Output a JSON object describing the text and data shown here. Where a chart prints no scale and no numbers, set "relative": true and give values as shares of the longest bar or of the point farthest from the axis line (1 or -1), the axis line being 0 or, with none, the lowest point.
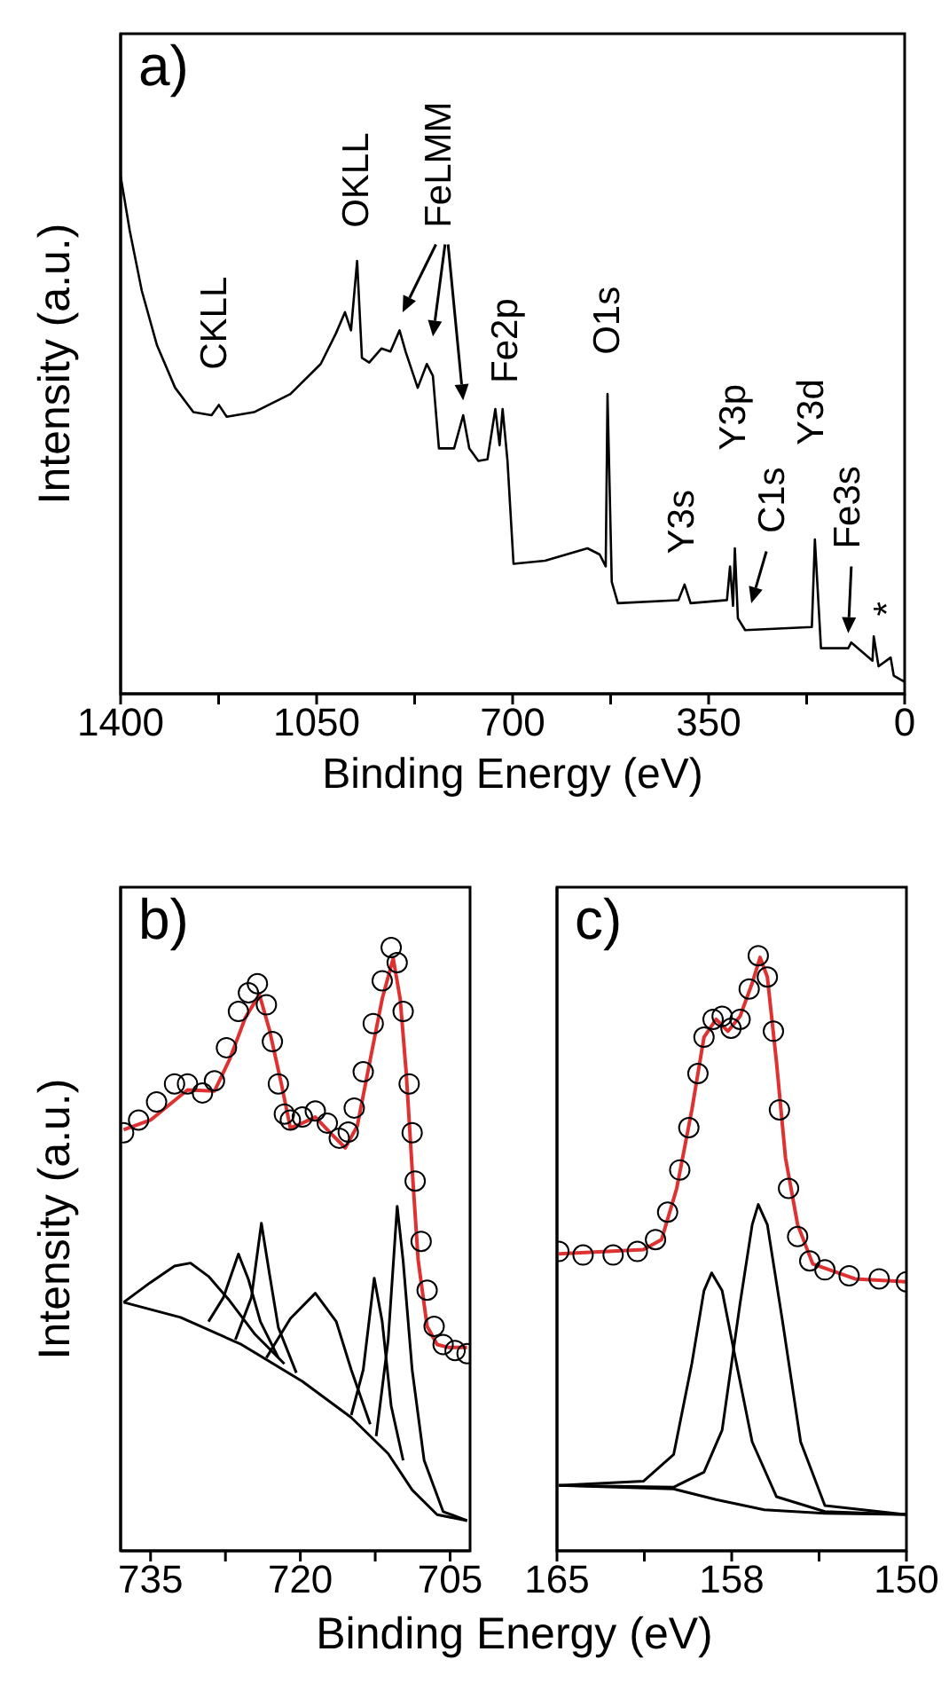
{
  "chart_data": [
    {
      "type": "line",
      "title": "a)",
      "xlabel": "Binding Energy (eV)",
      "ylabel": "Intensity (a.u.)",
      "relative": true,
      "tick_labels": "x",
      "xlim": [
        1400,
        0
      ],
      "xticks": [
        1400,
        {
          "value": 1225,
          "label": null
        },
        1050,
        {
          "value": 875,
          "label": null
        },
        700,
        {
          "value": 525,
          "label": null
        },
        350,
        {
          "value": 175,
          "label": null
        },
        0
      ],
      "series": [
        {
          "type": "line",
          "color": "#000000",
          "x": [
            1400,
            1383.8,
            1362.1,
            1335.0,
            1302.6,
            1270.1,
            1237.6,
            1224.6,
            1210.5,
            1161.8,
            1096.8,
            1042.7,
            1015.6,
            999.4,
            988.6,
            977.7,
            969.1,
            956.1,
            934.4,
            918.2,
            901.9,
            891.1,
            869.5,
            853.2,
            842.4,
            831.6,
            804.5,
            788.3,
            777.4,
            761.2,
            744.9,
            730.9,
            723.3,
            717.9,
            709.2,
            698.4,
            642.1,
            566.3,
            544.6,
            533.8,
            530.6,
            523.0,
            512.1,
            403.9,
            393.0,
            382.2,
            317.3,
            311.8,
            306.4,
            303.2,
            297.8,
            284.8,
            165.7,
            160.3,
            149.4,
            100.7,
            95.3,
            57.4,
            55.2,
            46.6,
            25.0,
            19.5,
            0
          ],
          "values": [
            1.0,
            0.895,
            0.778,
            0.673,
            0.591,
            0.544,
            0.538,
            0.558,
            0.535,
            0.544,
            0.579,
            0.637,
            0.696,
            0.737,
            0.702,
            0.836,
            0.649,
            0.64,
            0.667,
            0.661,
            0.702,
            0.661,
            0.591,
            0.637,
            0.614,
            0.474,
            0.474,
            0.538,
            0.474,
            0.45,
            0.453,
            0.55,
            0.48,
            0.55,
            0.45,
            0.251,
            0.257,
            0.281,
            0.269,
            0.246,
            0.579,
            0.216,
            0.175,
            0.181,
            0.211,
            0.175,
            0.181,
            0.246,
            0.17,
            0.281,
            0.146,
            0.123,
            0.129,
            0.298,
            0.088,
            0.088,
            0.099,
            0.064,
            0.111,
            0.053,
            0.07,
            0.035,
            0.023
          ]
        }
      ],
      "annotations": [
        "CKLL",
        "OKLL",
        "FeLMM",
        "Fe2p",
        "O1s",
        "Y3s",
        "Y3p",
        "C1s",
        "Y3d",
        "Fe3s",
        "*"
      ]
    },
    {
      "type": "line",
      "title": "b)",
      "xlabel": "Binding Energy (eV)",
      "ylabel": "Intensity (a.u.)",
      "relative": true,
      "tick_labels": "x",
      "xlim": [
        738,
        703
      ],
      "xticks": [
        735,
        {
          "value": 727.5,
          "label": null
        },
        720,
        {
          "value": 712.5,
          "label": null
        },
        705
      ],
      "series": [
        {
          "type": "scatter",
          "marker": "circle",
          "color": "#000000",
          "x": [
            737.7,
            736.2,
            734.4,
            732.6,
            731.3,
            729.8,
            728.6,
            727.4,
            726.2,
            725.2,
            724.3,
            723.4,
            722.8,
            722.2,
            721.6,
            721.0,
            719.8,
            718.5,
            717.3,
            716.1,
            715.2,
            714.6,
            713.7,
            712.7,
            711.8,
            710.9,
            710.3,
            709.7,
            709.1,
            708.8,
            708.5,
            707.9,
            707.3,
            706.6,
            705.7,
            704.5,
            703.3
          ],
          "values": [
            0.693,
            0.714,
            0.744,
            0.774,
            0.774,
            0.759,
            0.779,
            0.834,
            0.894,
            0.925,
            0.94,
            0.905,
            0.844,
            0.774,
            0.724,
            0.714,
            0.719,
            0.729,
            0.709,
            0.684,
            0.694,
            0.734,
            0.794,
            0.874,
            0.945,
            1.0,
            0.975,
            0.894,
            0.774,
            0.693,
            0.613,
            0.513,
            0.432,
            0.372,
            0.342,
            0.332,
            0.327
          ]
        },
        {
          "type": "line",
          "color": "#e03131",
          "x": [
            737.7,
            735.0,
            731.3,
            728.6,
            727.1,
            725.5,
            724.1,
            723.1,
            721.9,
            721.0,
            719.8,
            718.5,
            717.0,
            715.5,
            714.3,
            713.0,
            711.8,
            710.7,
            710.0,
            709.4,
            708.8,
            708.2,
            707.3,
            706.3,
            705.1,
            703.3
          ],
          "values": [
            0.698,
            0.714,
            0.764,
            0.762,
            0.814,
            0.884,
            0.922,
            0.864,
            0.774,
            0.701,
            0.709,
            0.719,
            0.693,
            0.668,
            0.704,
            0.814,
            0.915,
            0.982,
            0.915,
            0.794,
            0.633,
            0.482,
            0.372,
            0.342,
            0.337,
            0.337
          ]
        },
        {
          "type": "line",
          "color": "#000000",
          "x": [
            737.7,
            732.0,
            725.9,
            719.8,
            714.9,
            711.2,
            708.8,
            706.3,
            703.3
          ],
          "values": [
            0.412,
            0.387,
            0.342,
            0.281,
            0.221,
            0.161,
            0.101,
            0.06,
            0.05
          ]
        },
        {
          "type": "line",
          "color": "#000000",
          "x": [
            737.7,
            735.0,
            732.6,
            731.0,
            729.2,
            727.1,
            724.6,
            721.6
          ],
          "values": [
            0.412,
            0.445,
            0.472,
            0.477,
            0.455,
            0.415,
            0.36,
            0.31
          ]
        },
        {
          "type": "line",
          "color": "#000000",
          "x": [
            729.2,
            727.7,
            726.2,
            725.2,
            724.0,
            722.2
          ],
          "values": [
            0.38,
            0.42,
            0.492,
            0.45,
            0.38,
            0.32
          ]
        },
        {
          "type": "line",
          "color": "#000000",
          "x": [
            726.5,
            724.9,
            723.9,
            723.1,
            722.2,
            720.4
          ],
          "values": [
            0.35,
            0.42,
            0.543,
            0.46,
            0.37,
            0.295
          ]
        },
        {
          "type": "line",
          "color": "#000000",
          "x": [
            723.4,
            721.0,
            718.5,
            716.4,
            714.9,
            713.0
          ],
          "values": [
            0.32,
            0.385,
            0.427,
            0.38,
            0.3,
            0.21
          ]
        },
        {
          "type": "line",
          "color": "#000000",
          "x": [
            714.9,
            713.7,
            712.6,
            711.8,
            710.9,
            709.7
          ],
          "values": [
            0.225,
            0.3,
            0.452,
            0.38,
            0.24,
            0.15
          ]
        },
        {
          "type": "line",
          "color": "#000000",
          "x": [
            712.4,
            711.2,
            710.3,
            709.7,
            708.8,
            707.6,
            705.7,
            703.3
          ],
          "values": [
            0.19,
            0.35,
            0.571,
            0.48,
            0.3,
            0.15,
            0.065,
            0.05
          ]
        }
      ]
    },
    {
      "type": "line",
      "title": "c)",
      "relative": true,
      "tick_labels": "x",
      "xlim": [
        165,
        150
      ],
      "xticks": [
        165,
        {
          "value": 161.25,
          "label": null
        },
        {
          "value": 157.5,
          "label": "158"
        },
        {
          "value": 153.75,
          "label": null
        },
        150
      ],
      "series": [
        {
          "type": "scatter",
          "marker": "circle",
          "color": "#000000",
          "x": [
            164.92,
            163.88,
            162.59,
            161.55,
            160.77,
            160.25,
            159.73,
            159.34,
            158.95,
            158.69,
            158.3,
            157.91,
            157.53,
            157.14,
            156.75,
            156.36,
            155.97,
            155.71,
            155.45,
            155.06,
            154.67,
            154.15,
            153.5,
            152.46,
            151.17,
            150.0
          ],
          "values": [
            0.503,
            0.497,
            0.497,
            0.503,
            0.523,
            0.569,
            0.64,
            0.711,
            0.802,
            0.863,
            0.893,
            0.898,
            0.878,
            0.893,
            0.944,
            1.0,
            0.964,
            0.873,
            0.741,
            0.609,
            0.528,
            0.487,
            0.472,
            0.462,
            0.457,
            0.452
          ]
        },
        {
          "type": "line",
          "color": "#e03131",
          "x": [
            164.92,
            161.29,
            160.51,
            159.86,
            159.21,
            158.69,
            158.17,
            157.66,
            157.14,
            156.62,
            156.28,
            155.97,
            155.58,
            155.19,
            154.67,
            154.02,
            152.21,
            150.0
          ],
          "values": [
            0.499,
            0.506,
            0.523,
            0.609,
            0.741,
            0.863,
            0.893,
            0.873,
            0.898,
            0.954,
            0.997,
            0.964,
            0.822,
            0.66,
            0.548,
            0.482,
            0.457,
            0.452
          ]
        },
        {
          "type": "line",
          "color": "#000000",
          "x": [
            164.92,
            159.99,
            158.17,
            156.1,
            153.5,
            150.0
          ],
          "values": [
            0.11,
            0.104,
            0.086,
            0.069,
            0.063,
            0.061
          ]
        },
        {
          "type": "line",
          "color": "#000000",
          "x": [
            164.92,
            161.29,
            159.99,
            159.21,
            158.69,
            158.36,
            157.91,
            157.4,
            156.62,
            155.58,
            153.5,
            150.0
          ],
          "values": [
            0.11,
            0.117,
            0.162,
            0.315,
            0.437,
            0.467,
            0.437,
            0.335,
            0.183,
            0.091,
            0.066,
            0.061
          ]
        },
        {
          "type": "line",
          "color": "#000000",
          "x": [
            164.92,
            159.99,
            158.69,
            157.91,
            157.14,
            156.62,
            156.36,
            155.97,
            155.32,
            154.54,
            153.5,
            150.0
          ],
          "values": [
            0.11,
            0.107,
            0.132,
            0.203,
            0.416,
            0.548,
            0.582,
            0.548,
            0.386,
            0.183,
            0.076,
            0.061
          ]
        }
      ]
    }
  ]
}
